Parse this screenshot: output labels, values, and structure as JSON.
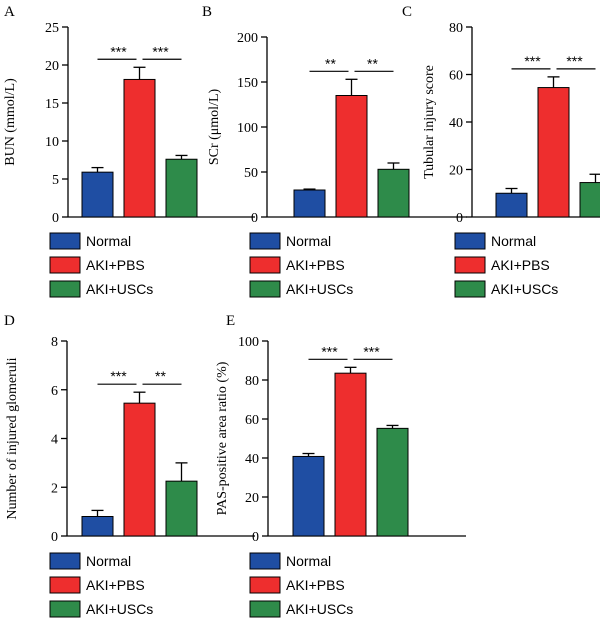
{
  "colors": {
    "normal": "#1f4ea3",
    "aki_pbs": "#ee2e2e",
    "aki_uscs": "#2e8b4a",
    "axis": "#000000"
  },
  "chart_data": [
    {
      "panel": "A",
      "type": "bar",
      "categories": [
        "Normal",
        "AKI+PBS",
        "AKI+USCs"
      ],
      "values": [
        5.9,
        18.1,
        7.6
      ],
      "errors": [
        0.6,
        1.6,
        0.5
      ],
      "ylabel": "BUN (mmol/L)",
      "ylim": [
        0,
        25
      ],
      "yticks": [
        0,
        5,
        10,
        15,
        20,
        25
      ],
      "significance": [
        {
          "from": 0,
          "to": 1,
          "label": "***"
        },
        {
          "from": 1,
          "to": 2,
          "label": "***"
        }
      ],
      "legend": [
        "Normal",
        "AKI+PBS",
        "AKI+USCs"
      ]
    },
    {
      "panel": "B",
      "type": "bar",
      "categories": [
        "Normal",
        "AKI+PBS",
        "AKI+USCs"
      ],
      "values": [
        30,
        135,
        53
      ],
      "errors": [
        1,
        18,
        7
      ],
      "ylabel": "SCr (μmol/L)",
      "ylim": [
        0,
        200
      ],
      "yticks": [
        0,
        50,
        100,
        150,
        200
      ],
      "significance": [
        {
          "from": 0,
          "to": 1,
          "label": "**"
        },
        {
          "from": 1,
          "to": 2,
          "label": "**"
        }
      ],
      "legend": [
        "Normal",
        "AKI+PBS",
        "AKI+USCs"
      ]
    },
    {
      "panel": "C",
      "type": "bar",
      "categories": [
        "Normal",
        "AKI+PBS",
        "AKI+USCs"
      ],
      "values": [
        10,
        54.5,
        14.5
      ],
      "errors": [
        2,
        4.5,
        3.5
      ],
      "ylabel": "Tubular injury score",
      "ylim": [
        0,
        80
      ],
      "yticks": [
        0,
        20,
        40,
        60,
        80
      ],
      "significance": [
        {
          "from": 0,
          "to": 1,
          "label": "***"
        },
        {
          "from": 1,
          "to": 2,
          "label": "***"
        }
      ],
      "legend": [
        "Normal",
        "AKI+PBS",
        "AKI+USCs"
      ]
    },
    {
      "panel": "D",
      "type": "bar",
      "categories": [
        "Normal",
        "AKI+PBS",
        "AKI+USCs"
      ],
      "values": [
        0.8,
        5.45,
        2.25
      ],
      "errors": [
        0.25,
        0.45,
        0.75
      ],
      "ylabel": "Number of injured glomeruli",
      "ylim": [
        0,
        8
      ],
      "yticks": [
        0,
        2,
        4,
        6,
        8
      ],
      "significance": [
        {
          "from": 0,
          "to": 1,
          "label": "***"
        },
        {
          "from": 1,
          "to": 2,
          "label": "**"
        }
      ],
      "legend": [
        "Normal",
        "AKI+PBS",
        "AKI+USCs"
      ]
    },
    {
      "panel": "E",
      "type": "bar",
      "categories": [
        "Normal",
        "AKI+PBS",
        "AKI+USCs"
      ],
      "values": [
        40.8,
        83.5,
        55.2
      ],
      "errors": [
        1.5,
        3,
        1.5
      ],
      "ylabel": "PAS-positive area ratio (%)",
      "ylim": [
        0,
        100
      ],
      "yticks": [
        0,
        20,
        40,
        60,
        80,
        100
      ],
      "significance": [
        {
          "from": 0,
          "to": 1,
          "label": "***"
        },
        {
          "from": 1,
          "to": 2,
          "label": "***"
        }
      ],
      "legend": [
        "Normal",
        "AKI+PBS",
        "AKI+USCs"
      ]
    }
  ]
}
